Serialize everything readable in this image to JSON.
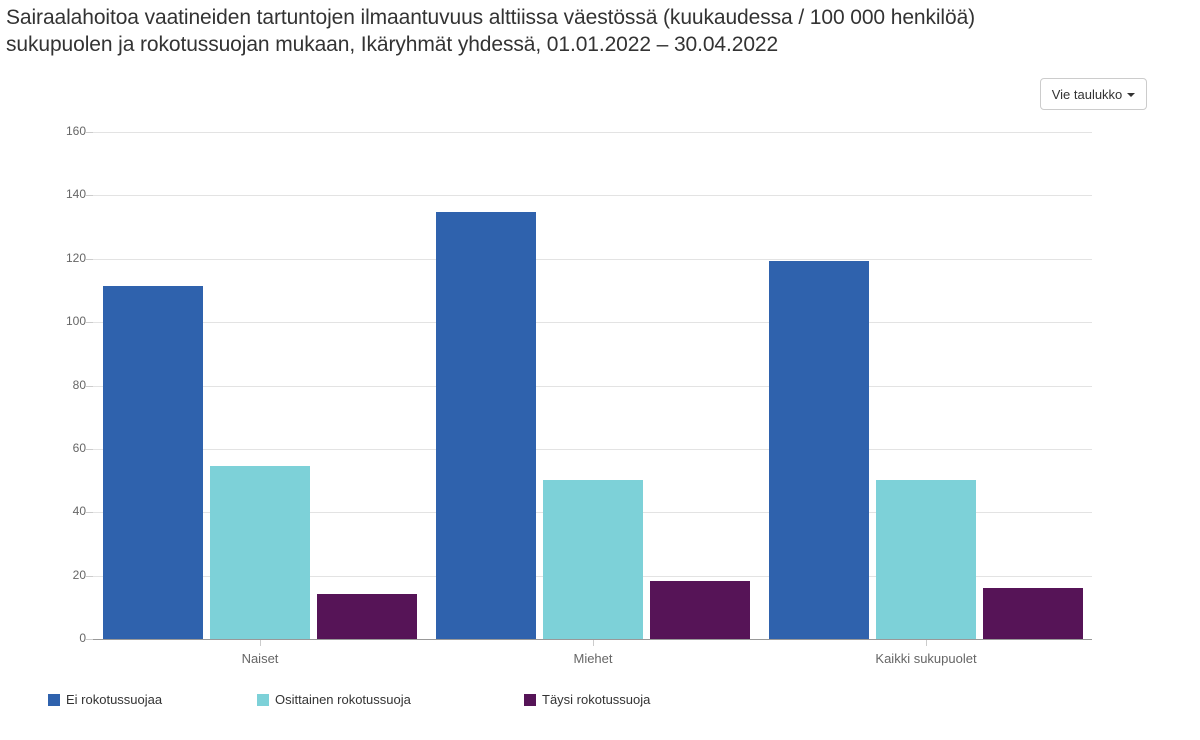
{
  "title": {
    "line1": "Sairaalahoitoa vaatineiden tartuntojen ilmaantuvuus alttiissa väestössä (kuukaudessa / 100 000 henkilöä)",
    "line2": "sukupuolen ja rokotussuojan mukaan, Ikäryhmät yhdessä, 01.01.2022 – 30.04.2022"
  },
  "toolbar": {
    "export_label": "Vie taulukko",
    "export_icon": "caret-down-icon"
  },
  "colors": {
    "ei": "#2f62ad",
    "osittainen": "#7dd1d8",
    "taysi": "#561457"
  },
  "chart_data": {
    "type": "bar",
    "title": "Sairaalahoitoa vaatineiden tartuntojen ilmaantuvuus alttiissa väestössä (kuukaudessa / 100 000 henkilöä) sukupuolen ja rokotussuojan mukaan, Ikäryhmät yhdessä, 01.01.2022 – 30.04.2022",
    "xlabel": "",
    "ylabel": "",
    "ylim": [
      0,
      160
    ],
    "yticks": [
      "0",
      "20",
      "40",
      "60",
      "80",
      "100",
      "120",
      "140",
      "160"
    ],
    "grid": true,
    "legend_position": "bottom-left",
    "categories": [
      "Naiset",
      "Miehet",
      "Kaikki sukupuolet"
    ],
    "series": [
      {
        "name": "Ei rokotussuojaa",
        "color": "#2f62ad",
        "values": [
          111.4,
          134.7,
          119.4
        ]
      },
      {
        "name": "Osittainen rokotussuoja",
        "color": "#7dd1d8",
        "values": [
          54.6,
          50.2,
          50.2
        ]
      },
      {
        "name": "Täysi rokotussuoja",
        "color": "#561457",
        "values": [
          14.2,
          18.4,
          16.0
        ]
      }
    ]
  }
}
